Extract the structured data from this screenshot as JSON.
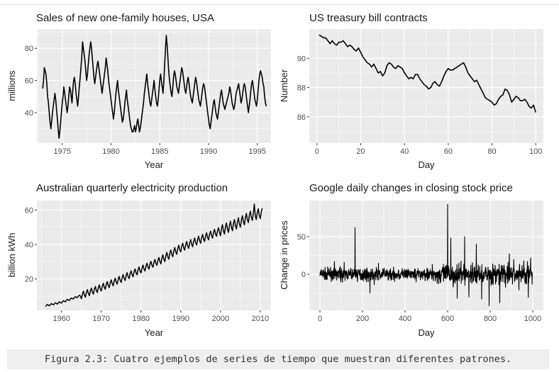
{
  "caption": "Figura 2.3: Cuatro ejemplos de series de tiempo que muestran diferentes patrones.",
  "chart_data": [
    {
      "type": "line",
      "title": "Sales of new one-family houses, USA",
      "xlabel": "Year",
      "ylabel": "millions",
      "xlim": [
        1972.4,
        1996.4
      ],
      "ylim": [
        21,
        92
      ],
      "xticks": [
        1975,
        1980,
        1985,
        1990,
        1995
      ],
      "yticks": [
        40,
        60,
        80
      ],
      "grid": true,
      "background": "#ebebeb",
      "line_color": "#000000",
      "x_start": 1973.0,
      "x_step": 0.08333,
      "y": [
        55,
        60,
        68,
        66,
        64,
        58,
        50,
        46,
        40,
        34,
        30,
        35,
        40,
        44,
        48,
        52,
        48,
        42,
        36,
        30,
        24,
        28,
        34,
        40,
        46,
        50,
        56,
        52,
        48,
        44,
        40,
        44,
        50,
        56,
        54,
        50,
        46,
        54,
        60,
        62,
        58,
        52,
        48,
        44,
        50,
        56,
        62,
        68,
        74,
        84,
        80,
        76,
        72,
        66,
        60,
        64,
        70,
        76,
        80,
        84,
        80,
        74,
        68,
        62,
        58,
        62,
        66,
        70,
        72,
        68,
        64,
        60,
        56,
        52,
        56,
        60,
        64,
        68,
        74,
        70,
        66,
        60,
        56,
        52,
        48,
        44,
        40,
        36,
        40,
        46,
        52,
        56,
        60,
        54,
        50,
        46,
        42,
        38,
        34,
        36,
        40,
        46,
        50,
        54,
        48,
        44,
        40,
        36,
        32,
        30,
        28,
        28,
        30,
        32,
        28,
        30,
        34,
        36,
        32,
        28,
        30,
        34,
        38,
        42,
        46,
        52,
        56,
        60,
        64,
        58,
        54,
        50,
        46,
        44,
        48,
        52,
        56,
        60,
        54,
        50,
        46,
        44,
        48,
        54,
        60,
        64,
        60,
        56,
        52,
        60,
        70,
        80,
        88,
        82,
        74,
        66,
        60,
        56,
        52,
        50,
        56,
        62,
        66,
        64,
        60,
        56,
        54,
        52,
        56,
        60,
        64,
        68,
        66,
        62,
        58,
        54,
        52,
        56,
        60,
        62,
        58,
        54,
        50,
        48,
        46,
        50,
        54,
        58,
        62,
        60,
        56,
        52,
        48,
        46,
        44,
        48,
        52,
        56,
        58,
        56,
        52,
        48,
        44,
        40,
        36,
        32,
        30,
        34,
        38,
        42,
        46,
        48,
        44,
        40,
        38,
        36,
        40,
        44,
        48,
        52,
        54,
        50,
        46,
        44,
        42,
        44,
        46,
        48,
        50,
        52,
        56,
        54,
        50,
        46,
        44,
        42,
        44,
        48,
        52,
        54,
        56,
        58,
        54,
        50,
        46,
        48,
        52,
        56,
        58,
        56,
        52,
        48,
        44,
        40,
        44,
        48,
        54,
        58,
        60,
        56,
        52,
        48,
        46,
        44,
        48,
        54,
        60,
        64,
        66,
        64,
        62,
        58,
        56,
        50,
        46,
        44
      ]
    },
    {
      "type": "line",
      "title": "US treasury bill contracts",
      "xlabel": "Day",
      "ylabel": "Number",
      "xlim": [
        -3.5,
        103.5
      ],
      "ylim": [
        84.2,
        92.0
      ],
      "xticks": [
        0,
        20,
        40,
        60,
        80,
        100
      ],
      "yticks": [
        86,
        88,
        90
      ],
      "grid": true,
      "background": "#ebebeb",
      "line_color": "#000000",
      "x_start": 1,
      "x_step": 1,
      "y": [
        91.6,
        91.5,
        91.4,
        91.4,
        91.2,
        91.0,
        91.2,
        91.0,
        90.9,
        91.1,
        91.1,
        91.2,
        91.0,
        90.8,
        90.9,
        90.8,
        90.6,
        90.5,
        90.7,
        90.4,
        90.1,
        89.9,
        89.7,
        89.6,
        89.4,
        89.6,
        89.3,
        89.0,
        89.1,
        88.8,
        89.0,
        89.5,
        89.7,
        89.6,
        89.4,
        89.3,
        89.5,
        89.4,
        89.3,
        89.0,
        88.8,
        88.6,
        88.7,
        88.6,
        88.9,
        88.9,
        88.6,
        88.4,
        88.2,
        88.1,
        87.9,
        88.0,
        88.3,
        88.4,
        88.2,
        88.1,
        88.4,
        88.8,
        89.1,
        89.3,
        89.2,
        89.2,
        89.3,
        89.4,
        89.5,
        89.6,
        89.7,
        89.4,
        89.0,
        88.8,
        88.6,
        88.4,
        88.5,
        88.2,
        87.9,
        87.6,
        87.3,
        87.2,
        87.1,
        87.0,
        86.8,
        86.9,
        87.2,
        87.4,
        87.5,
        87.9,
        87.8,
        87.5,
        87.0,
        87.2,
        87.4,
        87.3,
        87.1,
        87.1,
        87.2,
        87.0,
        86.7,
        86.6,
        86.8,
        86.3
      ]
    },
    {
      "type": "line",
      "title": "Australian quarterly electricity production",
      "xlabel": "Year",
      "ylabel": "billion kWh",
      "xlim": [
        1953.8,
        2012.7
      ],
      "ylim": [
        1.8,
        65.5
      ],
      "xticks": [
        1960,
        1970,
        1980,
        1990,
        2000,
        2010
      ],
      "yticks": [
        20,
        40,
        60
      ],
      "grid": true,
      "background": "#ebebeb",
      "line_color": "#000000",
      "x_start": 1956.0,
      "x_step": 0.25,
      "y_model": "trend + quarterly seasonal",
      "trend_anchors_x": [
        1956,
        1960,
        1965,
        1970,
        1975,
        1980,
        1985,
        1990,
        1995,
        2000,
        2005,
        2008,
        2010
      ],
      "trend_anchors_y": [
        4.5,
        6.5,
        10.5,
        15,
        20,
        25.5,
        31,
        38,
        43,
        48,
        53,
        57,
        58
      ],
      "seasonal_amplitude": [
        0.5,
        2.0,
        2.3,
        3.0
      ],
      "peak": {
        "x": 2008.5,
        "y": 63.5
      }
    },
    {
      "type": "line",
      "title": "Google daily changes in closing stock price",
      "xlabel": "Day",
      "ylabel": "Change in prices",
      "xlim": [
        -50,
        1050
      ],
      "ylim": [
        -48,
        98
      ],
      "xticks": [
        0,
        200,
        400,
        600,
        800,
        1000
      ],
      "yticks": [
        0,
        50
      ],
      "grid": true,
      "background": "#ebebeb",
      "line_color": "#000000",
      "n_points": 1000,
      "noise_amplitude": 8,
      "spikes": [
        {
          "x": 165,
          "y": 62
        },
        {
          "x": 235,
          "y": -25
        },
        {
          "x": 600,
          "y": 93
        },
        {
          "x": 615,
          "y": 48
        },
        {
          "x": 645,
          "y": -32
        },
        {
          "x": 680,
          "y": 50
        },
        {
          "x": 700,
          "y": -30
        },
        {
          "x": 735,
          "y": 40
        },
        {
          "x": 760,
          "y": -33
        },
        {
          "x": 795,
          "y": -42
        },
        {
          "x": 845,
          "y": -38
        },
        {
          "x": 890,
          "y": 27
        },
        {
          "x": 935,
          "y": -21
        },
        {
          "x": 975,
          "y": 17
        }
      ]
    }
  ]
}
